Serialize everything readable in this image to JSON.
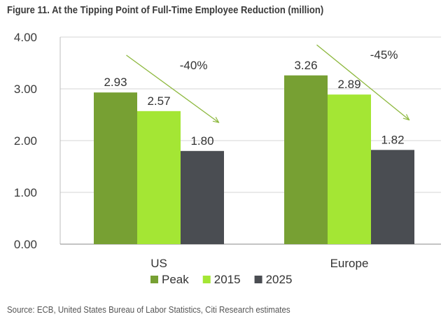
{
  "title": "Figure 11. At the Tipping Point of Full-Time Employee Reduction (million)",
  "source": "Source: ECB, United States Bureau of Labor Statistics, Citi Research estimates",
  "chart_data": {
    "type": "bar",
    "categories": [
      "US",
      "Europe"
    ],
    "series": [
      {
        "name": "Peak",
        "values": [
          2.93,
          3.26
        ],
        "labels": [
          "2.93",
          "3.26"
        ],
        "color": "#77A033"
      },
      {
        "name": "2015",
        "values": [
          2.57,
          2.89
        ],
        "labels": [
          "2.57",
          "2.89"
        ],
        "color": "#A4E634"
      },
      {
        "name": "2025",
        "values": [
          1.8,
          1.82
        ],
        "labels": [
          "1.80",
          "1.82"
        ],
        "color": "#4A4D52"
      }
    ],
    "ylim": [
      0,
      4
    ],
    "yticks": [
      "0.00",
      "1.00",
      "2.00",
      "3.00",
      "4.00"
    ],
    "ytick_values": [
      0,
      1,
      2,
      3,
      4
    ],
    "grid": true,
    "legend": "bottom",
    "annotations": [
      {
        "category": "US",
        "text": "-40%",
        "from_value": 3.65,
        "to_value": 2.35
      },
      {
        "category": "Europe",
        "text": "-45%",
        "from_value": 3.85,
        "to_value": 2.4
      }
    ],
    "arrow_color": "#8DB83E",
    "grid_color": "#d4d4d4"
  }
}
